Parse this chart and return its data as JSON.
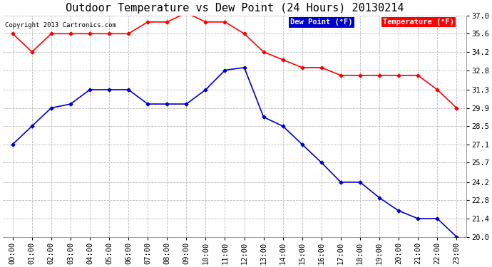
{
  "title": "Outdoor Temperature vs Dew Point (24 Hours) 20130214",
  "copyright": "Copyright 2013 Cartronics.com",
  "hours": [
    "00:00",
    "01:00",
    "02:00",
    "03:00",
    "04:00",
    "05:00",
    "06:00",
    "07:00",
    "08:00",
    "09:00",
    "10:00",
    "11:00",
    "12:00",
    "13:00",
    "14:00",
    "15:00",
    "16:00",
    "17:00",
    "18:00",
    "19:00",
    "20:00",
    "21:00",
    "22:00",
    "23:00"
  ],
  "temperature": [
    35.6,
    34.2,
    35.6,
    35.6,
    35.6,
    35.6,
    35.6,
    36.5,
    36.5,
    37.2,
    36.5,
    36.5,
    35.6,
    34.2,
    33.6,
    33.0,
    33.0,
    32.4,
    32.4,
    32.4,
    32.4,
    32.4,
    31.3,
    29.9
  ],
  "dew_point": [
    27.1,
    28.5,
    29.9,
    30.2,
    31.3,
    31.3,
    31.3,
    30.2,
    30.2,
    30.2,
    31.3,
    32.8,
    33.0,
    29.2,
    28.5,
    27.1,
    25.7,
    24.2,
    24.2,
    23.0,
    22.0,
    21.4,
    21.4,
    20.0
  ],
  "temp_color": "#ff0000",
  "dew_color": "#0000cc",
  "bg_color": "#ffffff",
  "plot_bg_color": "#ffffff",
  "grid_color": "#bbbbbb",
  "ylim": [
    20.0,
    37.0
  ],
  "yticks": [
    20.0,
    21.4,
    22.8,
    24.2,
    25.7,
    27.1,
    28.5,
    29.9,
    31.3,
    32.8,
    34.2,
    35.6,
    37.0
  ],
  "legend_dew_label": "Dew Point (°F)",
  "legend_temp_label": "Temperature (°F)",
  "title_fontsize": 11,
  "tick_fontsize": 7.5,
  "marker": "D",
  "marker_size": 2.5,
  "line_width": 1.2
}
